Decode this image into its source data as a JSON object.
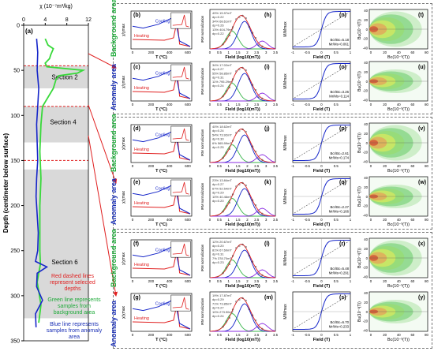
{
  "left_panel": {
    "label": "(a)",
    "x_axis_label": "χ (10⁻⁷m³/kg)",
    "y_axis_label": "Depth (centimeter below surface)",
    "x_ticks": [
      "0",
      "4",
      "8",
      "12"
    ],
    "y_ticks": [
      "0",
      "50",
      "100",
      "150",
      "200",
      "250",
      "300",
      "350"
    ],
    "sections": [
      "Section 2",
      "Section 4",
      "Section 6"
    ],
    "notes": {
      "red": "Red dashed lines represent selected depths",
      "green": "Green line represents samples from background area",
      "blue": "Blue line represents samples from anomaly area"
    },
    "colors": {
      "green": "#38d93a",
      "blue": "#1626c9",
      "red": "#e02020",
      "section_band": "#d9d9d9"
    }
  },
  "chart_data": [
    {
      "type": "line",
      "series": [
        {
          "name": "Green line represents samples from background area",
          "x": [
            4,
            4.5,
            5.5,
            5,
            4.8,
            4,
            4.3,
            11,
            10,
            6.5,
            6,
            5.5,
            3.5,
            3.2,
            3.0,
            3.2,
            3.0,
            3.0,
            3.0,
            3.1,
            2.8,
            2.5,
            2.8,
            3.2,
            2.8
          ],
          "y": [
            15,
            22,
            26,
            33,
            37,
            42,
            46,
            50,
            53,
            56,
            60,
            70,
            90,
            110,
            140,
            170,
            200,
            230,
            250,
            265,
            275,
            285,
            295,
            310,
            330
          ]
        },
        {
          "name": "Blue line represents samples from anomaly area",
          "x": [
            2.4,
            2.6,
            2.5,
            2.8,
            2.6,
            2.4,
            2.5,
            2.6,
            2.4,
            2.3,
            2.5,
            2.7,
            2.6,
            2.2,
            4.3,
            2.5,
            2.4,
            3.5,
            2.2,
            2.3
          ],
          "y": [
            15,
            30,
            50,
            70,
            90,
            110,
            130,
            150,
            170,
            190,
            210,
            230,
            250,
            262,
            268,
            275,
            290,
            305,
            320,
            335
          ]
        }
      ],
      "xlabel": "χ (10⁻⁷m³/kg)",
      "ylabel": "Depth (centimeter below surface)",
      "xlim": [
        0,
        12
      ],
      "ylim": [
        0,
        350
      ]
    }
  ],
  "sections": [
    {
      "name": "Section 2",
      "rows": [
        {
          "area": "Background area",
          "thermo": "(b)",
          "irm": "(h)",
          "hyst": "(n)",
          "forc": "(t)",
          "irm_text": [
            "49% 15.97mT",
            "dp=0.22",
            "34% 68.61mT",
            "dp=0.26",
            "13% 404.79mT",
            "dp=0.22"
          ],
          "hyst_text": [
            "Bcr/Bc=5.18",
            "Mr/Ms=0.061"
          ]
        },
        {
          "area": "Anomaly area",
          "thermo": "(c)",
          "irm": "(i)",
          "hyst": "(o)",
          "forc": "(u)",
          "irm_text": [
            "34% 17.02mT",
            "dp=0.27",
            "55% 58.85mT",
            "dp=0.31",
            "11% 795.29mT",
            "dp=0.24"
          ],
          "hyst_text": [
            "Bcr/Bc=3.26",
            "Mr/Ms=0.114"
          ]
        }
      ]
    },
    {
      "name": "Section 4",
      "rows": [
        {
          "area": "Background area",
          "thermo": "(d)",
          "irm": "(j)",
          "hyst": "(p)",
          "forc": "(v)",
          "irm_text": [
            "40% 18.62mT",
            "dp=0.24",
            "54% 73.92mT",
            "dp=0.30",
            "6% 565.99mT",
            "dp=0.25"
          ],
          "hyst_text": [
            "Bcr/Bc=2.61",
            "Mr/Ms=0.174"
          ]
        },
        {
          "area": "Anomaly area",
          "thermo": "(e)",
          "irm": "(k)",
          "hyst": "(q)",
          "forc": "(w)",
          "irm_text": [
            "23% 13.84mT",
            "dp=0.27",
            "67% 52.54mT",
            "dp=0.29",
            "10% 40.46mT",
            "dp=0.20"
          ],
          "hyst_text": [
            "Bcr/Bc=2.27",
            "Mr/Ms=0.166"
          ]
        }
      ]
    },
    {
      "name": "Section 6",
      "rows": [
        {
          "area": "Background area",
          "thermo": "(f)",
          "irm": "(l)",
          "hyst": "(r)",
          "forc": "(x)",
          "irm_text": [
            "12% 20.67mT",
            "dp=0.20",
            "81% 67.60mT",
            "dp=0.31",
            "7% 378.70mT",
            "dp=0.23"
          ],
          "hyst_text": [
            "Bcr/Bc=5.48",
            "Mr/Ms=0.291"
          ]
        },
        {
          "area": "Anomaly area",
          "thermo": "(g)",
          "irm": "(m)",
          "hyst": "(s)",
          "forc": "(y)",
          "irm_text": [
            "19% 17.87mT",
            "dp=0.29",
            "71% 73.85mT",
            "dp=0.27",
            "10% 273.90mT",
            "dp=0.24"
          ],
          "hyst_text": [
            "Bcr/Bc=6.70",
            "Mr/Ms=0.233"
          ]
        }
      ]
    }
  ],
  "axes": {
    "thermo_x": "T (°C)",
    "thermo_y": "χ/χmax",
    "thermo_heat": "Heating",
    "thermo_cool": "Cooling",
    "irm_x": "Field (log10(mT))",
    "irm_y": "IRM normalization",
    "hyst_x": "Field (T)",
    "hyst_y": "M/Mmax",
    "forc_x": "Bc(10⁻³(T))",
    "forc_y": "Bu(10⁻³(T))",
    "thermo_ticks": [
      "0",
      "200",
      "400",
      "600"
    ],
    "irm_ticks": [
      "0",
      "0.5",
      "1",
      "1.5",
      "2",
      "2.5",
      "3",
      "3.5"
    ],
    "hyst_ticks": [
      "-1",
      "-0.5",
      "0",
      "0.5",
      "1"
    ],
    "forc_x_ticks": [
      "0",
      "20",
      "40",
      "60",
      "80"
    ],
    "forc_y_ticks": [
      "40",
      "20",
      "0",
      "-20",
      "-40"
    ]
  }
}
